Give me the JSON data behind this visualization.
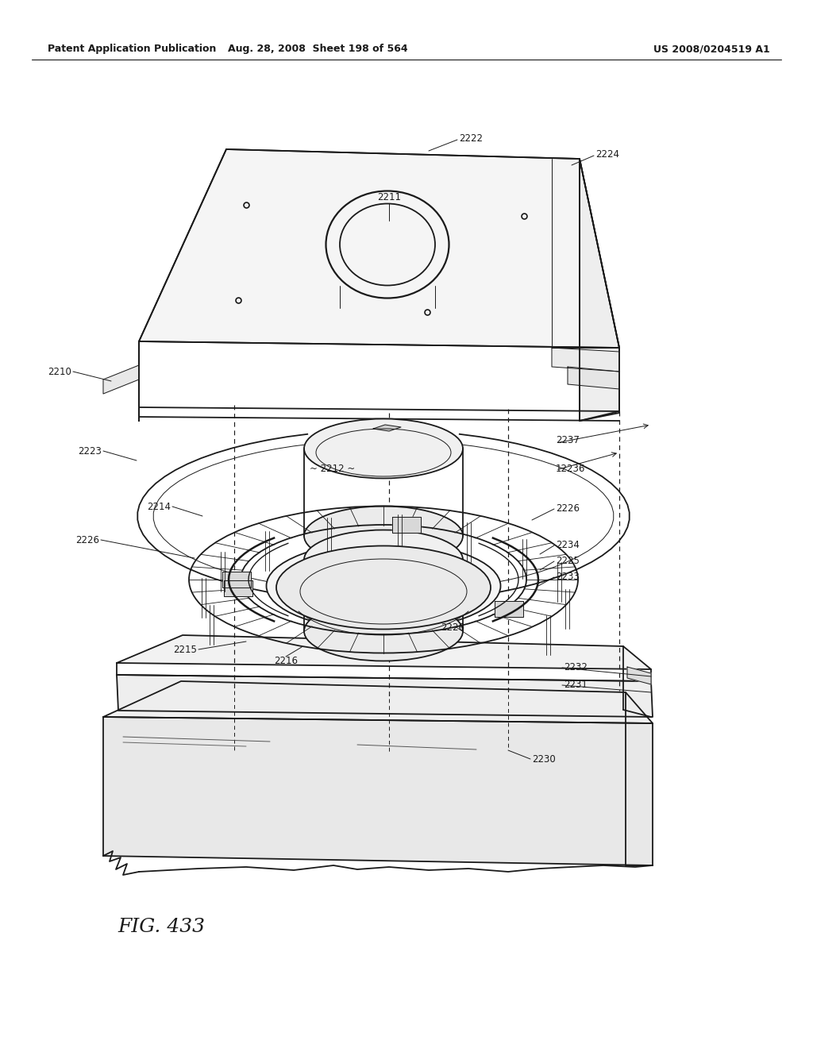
{
  "header_left": "Patent Application Publication",
  "header_mid": "Aug. 28, 2008  Sheet 198 of 564",
  "header_right": "US 2008/0204519 A1",
  "figure_label": "FIG. 433",
  "background_color": "#ffffff",
  "line_color": "#1a1a1a",
  "label_fontsize": 8.5
}
